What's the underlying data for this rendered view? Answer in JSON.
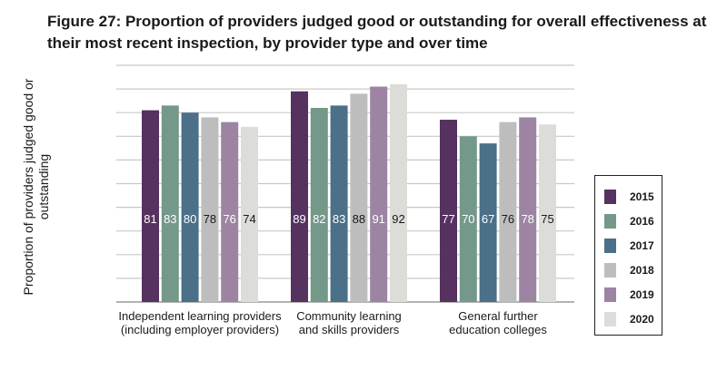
{
  "chart_data": {
    "type": "bar",
    "title": "Figure 27: Proportion of providers judged good or outstanding for overall effectiveness at their most recent inspection, by provider type and over time",
    "ylabel": "Proportion of providers judged good or outstanding",
    "xlabel": "",
    "categories": [
      "Independent learning providers (including employer providers)",
      "Community learning and skills providers",
      "General further education colleges"
    ],
    "category_lines": [
      [
        "Independent learning providers",
        "(including employer providers)"
      ],
      [
        "Community learning",
        "and skills providers"
      ],
      [
        "General further",
        "education colleges"
      ]
    ],
    "ylim": [
      0,
      100
    ],
    "grid": true,
    "legend_position": "right",
    "series": [
      {
        "name": "2015",
        "color": "#55325f",
        "label_color": "#ffffff",
        "values": [
          81,
          89,
          77
        ]
      },
      {
        "name": "2016",
        "color": "#74988a",
        "label_color": "#ffffff",
        "values": [
          83,
          82,
          70
        ]
      },
      {
        "name": "2017",
        "color": "#4b7088",
        "label_color": "#ffffff",
        "values": [
          80,
          83,
          67
        ]
      },
      {
        "name": "2018",
        "color": "#bdbdbd",
        "label_color": "#1a1a1a",
        "values": [
          78,
          88,
          76
        ]
      },
      {
        "name": "2019",
        "color": "#9d84a3",
        "label_color": "#ffffff",
        "values": [
          76,
          91,
          78
        ]
      },
      {
        "name": "2020",
        "color": "#dcdcd8",
        "label_color": "#1a1a1a",
        "values": [
          74,
          92,
          75
        ]
      }
    ]
  }
}
